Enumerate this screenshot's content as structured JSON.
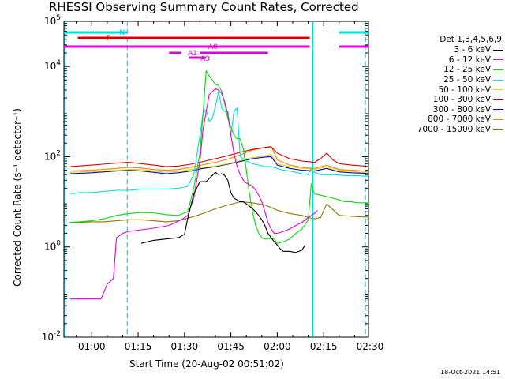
{
  "chart_data": {
    "type": "line",
    "title": "RHESSI Observing Summary Count Rates, Corrected",
    "xlabel": "Start Time (20-Aug-02 00:51:02)",
    "ylabel": "Corrected Count Rate (s⁻¹ detector⁻¹)",
    "yscale": "log",
    "ylim": [
      0.01,
      100000
    ],
    "xlim_minutes": [
      51.0,
      149.5
    ],
    "x_ticks": [
      {
        "label": "01:00",
        "minutes": 60
      },
      {
        "label": "01:15",
        "minutes": 75
      },
      {
        "label": "01:30",
        "minutes": 90
      },
      {
        "label": "01:45",
        "minutes": 105
      },
      {
        "label": "02:00",
        "minutes": 120
      },
      {
        "label": "02:15",
        "minutes": 135
      },
      {
        "label": "02:30",
        "minutes": 150
      }
    ],
    "y_ticks": [
      {
        "label_base": "10",
        "label_exp": "-2",
        "value": 0.01
      },
      {
        "label_base": "10",
        "label_exp": "0",
        "value": 1
      },
      {
        "label_base": "10",
        "label_exp": "2",
        "value": 100
      },
      {
        "label_base": "10",
        "label_exp": "4",
        "value": 10000
      },
      {
        "label_base": "10",
        "label_exp": "5",
        "value": 100000
      }
    ],
    "legend_title": "Det 1,3,4,5,6,9",
    "series": [
      {
        "name": "3 - 6 keV",
        "color": "#000000",
        "x": [
          76,
          80,
          84,
          88,
          90,
          91,
          92,
          93,
          95,
          97,
          100,
          101,
          102,
          103,
          104,
          105,
          106,
          107,
          108,
          109,
          110,
          111,
          112,
          113,
          114,
          115,
          116,
          117,
          118,
          119,
          120,
          121,
          122,
          124,
          126,
          128,
          129
        ],
        "y": [
          1.2,
          1.4,
          1.5,
          1.6,
          1.9,
          4.2,
          8,
          15,
          28,
          28,
          45,
          40,
          42,
          38,
          30,
          16,
          12,
          11,
          10,
          10,
          9,
          8,
          7,
          6,
          5,
          4,
          3,
          2,
          1.6,
          1.3,
          1.1,
          0.9,
          0.8,
          0.8,
          0.75,
          0.85,
          1.1
        ]
      },
      {
        "name": "6 - 12 keV",
        "color": "#e000e0",
        "x": [
          53,
          56,
          59,
          61,
          63,
          65,
          67,
          68,
          70,
          72,
          76,
          80,
          85,
          89,
          91,
          93,
          95,
          96,
          97,
          98,
          100,
          101,
          102,
          103,
          104,
          105,
          106,
          107,
          108,
          109,
          110,
          111,
          112,
          113,
          114,
          115,
          116,
          117,
          118,
          119,
          120,
          122,
          124,
          126,
          128,
          130,
          132,
          133
        ],
        "y": [
          0.07,
          0.07,
          0.07,
          0.07,
          0.07,
          0.15,
          0.2,
          1.6,
          2.0,
          2.2,
          2.4,
          2.6,
          3.0,
          4,
          5,
          12,
          80,
          400,
          1000,
          2400,
          3200,
          3000,
          2500,
          1600,
          900,
          300,
          120,
          60,
          40,
          30,
          26,
          24,
          22,
          18,
          14,
          10,
          6,
          3.5,
          2.5,
          2,
          2,
          2.2,
          2.5,
          3,
          3.5,
          4.5,
          5.5,
          6.5
        ]
      },
      {
        "name": "12 - 25 keV",
        "color": "#00dd00",
        "x": [
          53,
          56,
          60,
          64,
          68,
          72,
          76,
          80,
          84,
          88,
          91,
          93,
          95,
          96,
          97,
          98,
          99,
          100,
          101,
          102,
          103,
          104,
          105,
          106,
          107,
          108,
          109,
          110,
          111,
          112,
          113,
          114,
          115,
          116,
          117,
          118,
          119,
          120,
          122,
          124,
          126,
          128,
          130,
          131,
          132,
          134,
          136,
          138,
          140,
          142,
          144,
          146,
          148,
          149.5
        ],
        "y": [
          3.5,
          3.6,
          3.8,
          4.2,
          5.0,
          5.5,
          5.8,
          5.7,
          5.2,
          5.0,
          6,
          20,
          120,
          900,
          8000,
          6000,
          5000,
          4000,
          3800,
          2800,
          1500,
          700,
          450,
          300,
          250,
          250,
          150,
          50,
          15,
          6,
          3,
          2,
          1.6,
          1.5,
          1.5,
          1.6,
          1.5,
          1.2,
          1.3,
          1.5,
          2,
          2.5,
          4,
          25,
          15,
          14,
          13,
          12,
          11,
          10,
          10,
          9.5,
          9.5,
          9.5
        ]
      },
      {
        "name": "25 - 50 keV",
        "color": "#00dddd",
        "x": [
          53,
          56,
          60,
          64,
          68,
          72,
          76,
          80,
          84,
          88,
          91,
          93,
          95,
          96,
          97,
          98,
          99,
          100,
          101,
          102,
          103,
          104,
          105,
          106,
          107,
          108,
          110,
          112,
          114,
          116,
          118,
          120,
          122,
          124,
          126,
          128,
          130,
          131,
          132,
          134,
          136,
          138,
          140,
          142,
          144,
          146,
          148,
          149.5
        ],
        "y": [
          15,
          16,
          16,
          17,
          18,
          18,
          19,
          19,
          19,
          20,
          22,
          40,
          300,
          900,
          1100,
          600,
          700,
          1300,
          2800,
          1200,
          1000,
          1000,
          300,
          1000,
          1200,
          100,
          80,
          70,
          65,
          60,
          60,
          55,
          50,
          48,
          45,
          42,
          40,
          55,
          45,
          40,
          40,
          40,
          39,
          38,
          38,
          38,
          37,
          37
        ]
      },
      {
        "name": "50 - 100 keV",
        "color": "#d8d800",
        "x": [
          53,
          60,
          68,
          72,
          76,
          80,
          84,
          88,
          92,
          96,
          100,
          104,
          108,
          112,
          116,
          118,
          120,
          124,
          128,
          132,
          136,
          140,
          144,
          148,
          149.5
        ],
        "y": [
          45,
          47,
          50,
          52,
          52,
          48,
          45,
          47,
          52,
          58,
          62,
          70,
          82,
          95,
          105,
          112,
          70,
          60,
          55,
          52,
          60,
          50,
          47,
          45,
          45
        ]
      },
      {
        "name": "100 - 300 keV",
        "color": "#dd0000",
        "x": [
          53,
          60,
          68,
          72,
          76,
          80,
          84,
          88,
          92,
          96,
          100,
          104,
          108,
          112,
          116,
          118,
          120,
          124,
          128,
          132,
          134,
          136,
          138,
          140,
          144,
          148,
          149.5
        ],
        "y": [
          60,
          65,
          72,
          75,
          70,
          65,
          60,
          62,
          68,
          78,
          90,
          105,
          125,
          145,
          160,
          165,
          120,
          90,
          80,
          75,
          90,
          120,
          85,
          70,
          65,
          62,
          60
        ]
      },
      {
        "name": "300 - 800 keV",
        "color": "#0000cc",
        "x": [
          53,
          60,
          68,
          72,
          76,
          80,
          84,
          88,
          92,
          96,
          100,
          104,
          108,
          112,
          116,
          118,
          120,
          124,
          128,
          132,
          136,
          140,
          144,
          148,
          149.5
        ],
        "y": [
          42,
          44,
          48,
          50,
          48,
          45,
          42,
          44,
          48,
          55,
          60,
          68,
          78,
          90,
          98,
          100,
          65,
          55,
          50,
          48,
          55,
          46,
          44,
          43,
          42
        ]
      },
      {
        "name": "800 - 7000 keV",
        "color": "#ee8800",
        "x": [
          53,
          60,
          68,
          72,
          76,
          80,
          84,
          88,
          92,
          96,
          100,
          104,
          108,
          112,
          116,
          118,
          120,
          124,
          128,
          132,
          136,
          140,
          144,
          148,
          149.5
        ],
        "y": [
          48,
          50,
          55,
          58,
          56,
          52,
          50,
          52,
          58,
          66,
          75,
          88,
          110,
          140,
          160,
          170,
          85,
          65,
          58,
          55,
          65,
          52,
          50,
          48,
          47
        ]
      },
      {
        "name": "7000 - 15000 keV",
        "color": "#8a7a00",
        "x": [
          53,
          56,
          60,
          64,
          68,
          72,
          76,
          80,
          84,
          88,
          92,
          96,
          100,
          104,
          108,
          112,
          116,
          118,
          120,
          124,
          128,
          130,
          132,
          134,
          136,
          140,
          144,
          148,
          149.5
        ],
        "y": [
          3.5,
          3.5,
          3.6,
          3.6,
          3.8,
          4.0,
          4.0,
          3.8,
          3.6,
          3.8,
          4.5,
          5.5,
          7,
          8.5,
          10,
          9.5,
          8.5,
          7.5,
          6.5,
          5.5,
          5.0,
          4.5,
          4.2,
          4.5,
          9,
          5.0,
          4.8,
          4.6,
          4.6
        ]
      }
    ],
    "attenuator_states": [
      {
        "label": "F",
        "color": "#dd0000",
        "segments": [
          [
            55.5,
            130.5
          ]
        ]
      },
      {
        "label": "A0",
        "color": "#e000e0",
        "segments": [
          [
            51,
            130.5
          ],
          [
            140,
            149.5
          ]
        ]
      },
      {
        "label": "A1",
        "color": "#e000e0",
        "segments": [
          [
            85,
            89
          ],
          [
            95,
            117
          ]
        ]
      },
      {
        "label": "A3",
        "color": "#e000e0",
        "segments": [
          [
            91.5,
            97
          ]
        ]
      }
    ],
    "night_bar": {
      "label": "N",
      "color": "#00dddd",
      "segments": [
        [
          51,
          71.5
        ],
        [
          140,
          149.5
        ]
      ]
    },
    "vertical_markers": [
      {
        "minutes": 71.5,
        "color": "#00dddd",
        "style": "dashed"
      },
      {
        "minutes": 131.5,
        "color": "#00dddd",
        "style": "solid"
      },
      {
        "minutes": 148.5,
        "color": "#00dddd",
        "style": "dashed"
      }
    ],
    "legend_placement": "right",
    "grid": false
  },
  "timestamp": "18-Oct-2021 14:51"
}
